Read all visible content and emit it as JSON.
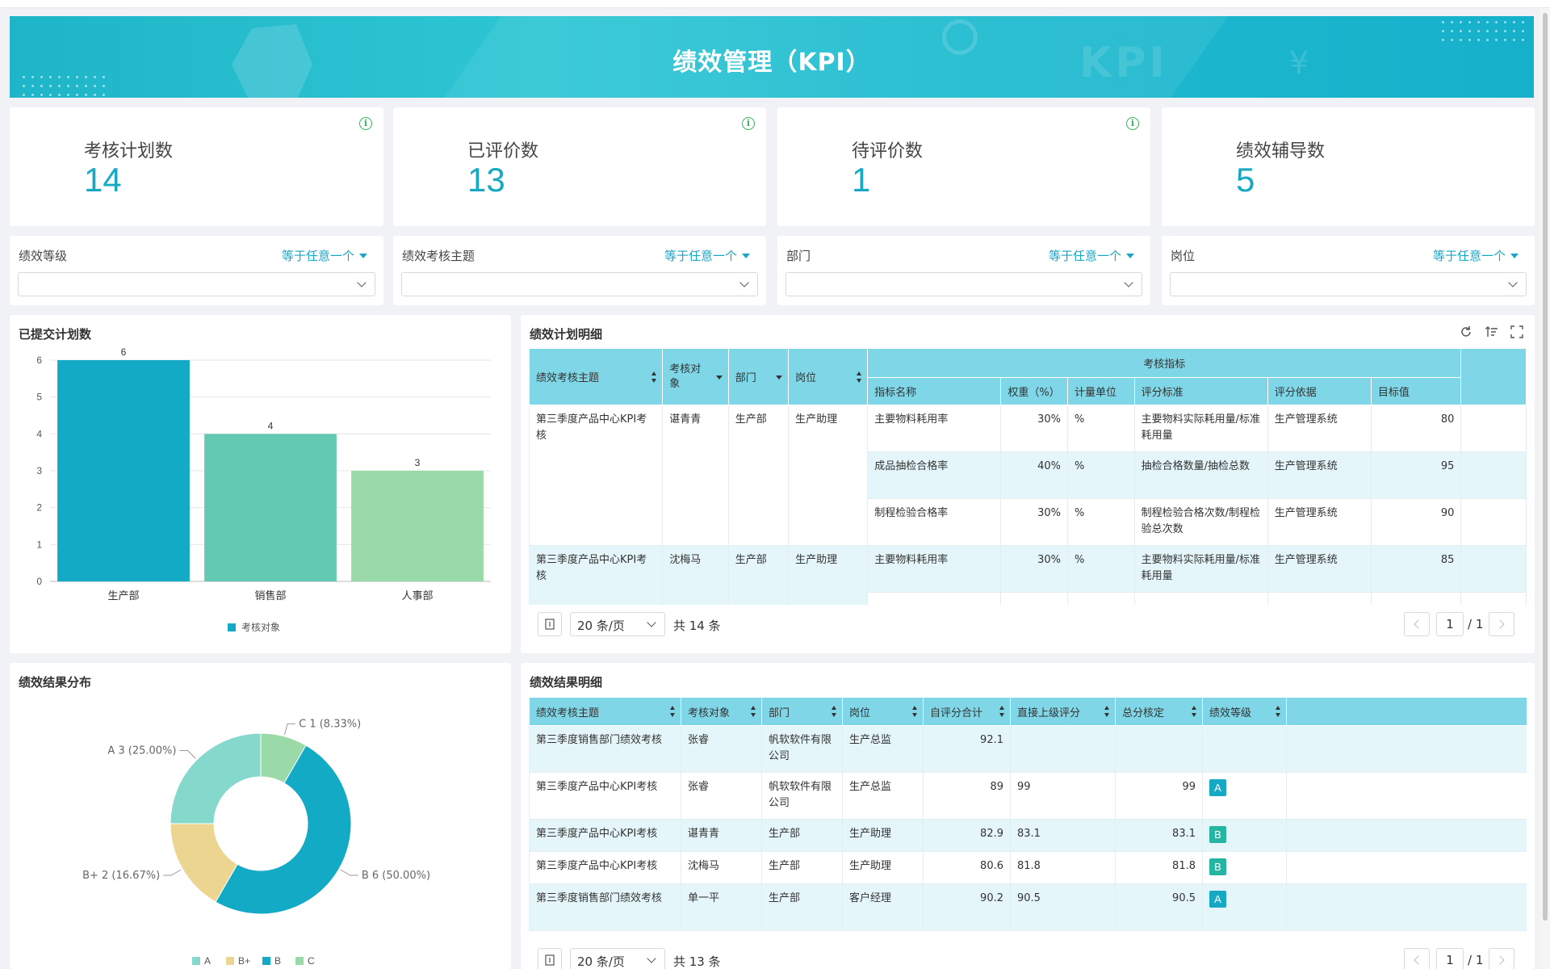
{
  "page": {
    "title": "绩效管理（KPI）"
  },
  "stats": [
    {
      "label": "考核计划数",
      "value": "14",
      "has_info": true
    },
    {
      "label": "已评价数",
      "value": "13",
      "has_info": true
    },
    {
      "label": "待评价数",
      "value": "1",
      "has_info": true
    },
    {
      "label": "绩效辅导数",
      "value": "5",
      "has_info": false
    }
  ],
  "filters": [
    {
      "label": "绩效等级",
      "operator": "等于任意一个",
      "value": ""
    },
    {
      "label": "绩效考核主题",
      "operator": "等于任意一个",
      "value": ""
    },
    {
      "label": "部门",
      "operator": "等于任意一个",
      "value": ""
    },
    {
      "label": "岗位",
      "operator": "等于任意一个",
      "value": ""
    }
  ],
  "bar_panel": {
    "title": "已提交计划数",
    "legend": "考核对象"
  },
  "pie_panel": {
    "title": "绩效结果分布"
  },
  "plan_table": {
    "title": "绩效计划明细",
    "group_header": "考核指标",
    "headers": [
      "绩效考核主题",
      "考核对象",
      "部门",
      "岗位",
      "指标名称",
      "权重（%）",
      "计量单位",
      "评分标准",
      "评分依据",
      "目标值"
    ],
    "groups": [
      {
        "topic": "第三季度产品中心KPI考核",
        "person": "谌青青",
        "dept": "生产部",
        "post": "生产助理",
        "indicators": [
          {
            "name": "主要物料耗用率",
            "weight": "30%",
            "unit": "%",
            "standard": "主要物料实际耗用量/标准耗用量",
            "basis": "生产管理系统",
            "target": "80"
          },
          {
            "name": "成品抽检合格率",
            "weight": "40%",
            "unit": "%",
            "standard": "抽检合格数量/抽检总数",
            "basis": "生产管理系统",
            "target": "95"
          },
          {
            "name": "制程检验合格率",
            "weight": "30%",
            "unit": "%",
            "standard": "制程检验合格次数/制程检验总次数",
            "basis": "生产管理系统",
            "target": "90"
          }
        ]
      },
      {
        "topic": "第三季度产品中心KPI考核",
        "person": "沈梅马",
        "dept": "生产部",
        "post": "生产助理",
        "indicators": [
          {
            "name": "主要物料耗用率",
            "weight": "30%",
            "unit": "%",
            "standard": "主要物料实际耗用量/标准耗用量",
            "basis": "生产管理系统",
            "target": "85"
          }
        ]
      }
    ],
    "page_size": "20 条/页",
    "total": "共 14 条",
    "page": "1",
    "page_total": "/ 1"
  },
  "result_table": {
    "title": "绩效结果明细",
    "headers": [
      "绩效考核主题",
      "考核对象",
      "部门",
      "岗位",
      "自评分合计",
      "直接上级评分",
      "总分核定",
      "绩效等级"
    ],
    "rows": [
      {
        "topic": "第三季度销售部门绩效考核",
        "person": "张睿",
        "dept": "帆软软件有限公司",
        "post": "生产总监",
        "self": "92.1",
        "boss": "",
        "total": "",
        "grade": ""
      },
      {
        "topic": "第三季度产品中心KPI考核",
        "person": "张睿",
        "dept": "帆软软件有限公司",
        "post": "生产总监",
        "self": "89",
        "boss": "99",
        "total": "99",
        "grade": "A"
      },
      {
        "topic": "第三季度产品中心KPI考核",
        "person": "谌青青",
        "dept": "生产部",
        "post": "生产助理",
        "self": "82.9",
        "boss": "83.1",
        "total": "83.1",
        "grade": "B"
      },
      {
        "topic": "第三季度产品中心KPI考核",
        "person": "沈梅马",
        "dept": "生产部",
        "post": "生产助理",
        "self": "80.6",
        "boss": "81.8",
        "total": "81.8",
        "grade": "B"
      },
      {
        "topic": "第三季度销售部门绩效考核",
        "person": "单一平",
        "dept": "生产部",
        "post": "客户经理",
        "self": "90.2",
        "boss": "90.5",
        "total": "90.5",
        "grade": "A"
      }
    ],
    "page_size": "20 条/页",
    "total": "共 13 条",
    "page": "1",
    "page_total": "/ 1"
  },
  "colors": {
    "accent": "#17a8c4",
    "grade_A": "#17a8c4",
    "grade_B": "#26b5a0",
    "header_bg": "#7fd6e6",
    "row_alt": "#e4f6f9"
  },
  "icons": [
    "info-icon",
    "refresh-icon",
    "sort-list-icon",
    "fullscreen-icon",
    "page-jump-icon",
    "chevron-down-icon",
    "chevron-left-icon",
    "chevron-right-icon"
  ],
  "chart_data": [
    {
      "type": "bar",
      "categories": [
        "生产部",
        "销售部",
        "人事部"
      ],
      "values": [
        6,
        4,
        3
      ],
      "series": [
        {
          "name": "考核对象",
          "values": [
            6,
            4,
            3
          ]
        }
      ],
      "colors": [
        "#13aac6",
        "#64c9b2",
        "#9ad9a8"
      ],
      "ylim": [
        0,
        6
      ],
      "yticks": [
        "0",
        "1",
        "2",
        "3",
        "4",
        "5",
        "6"
      ],
      "data_labels": [
        "6",
        "4",
        "3"
      ],
      "grid": true,
      "legend": "bottom"
    },
    {
      "type": "pie",
      "variant": "donut",
      "labels": [
        "A",
        "B+",
        "B",
        "C"
      ],
      "values": [
        3,
        2,
        6,
        1
      ],
      "percent_labels": [
        "A 3 (25.00%)",
        "B+ 2 (16.67%)",
        "B 6 (50.00%)",
        "C 1 (8.33%)"
      ],
      "colors": [
        "#85d8cc",
        "#ecd590",
        "#13aac6",
        "#9ad9a8"
      ],
      "legend": "bottom"
    }
  ]
}
